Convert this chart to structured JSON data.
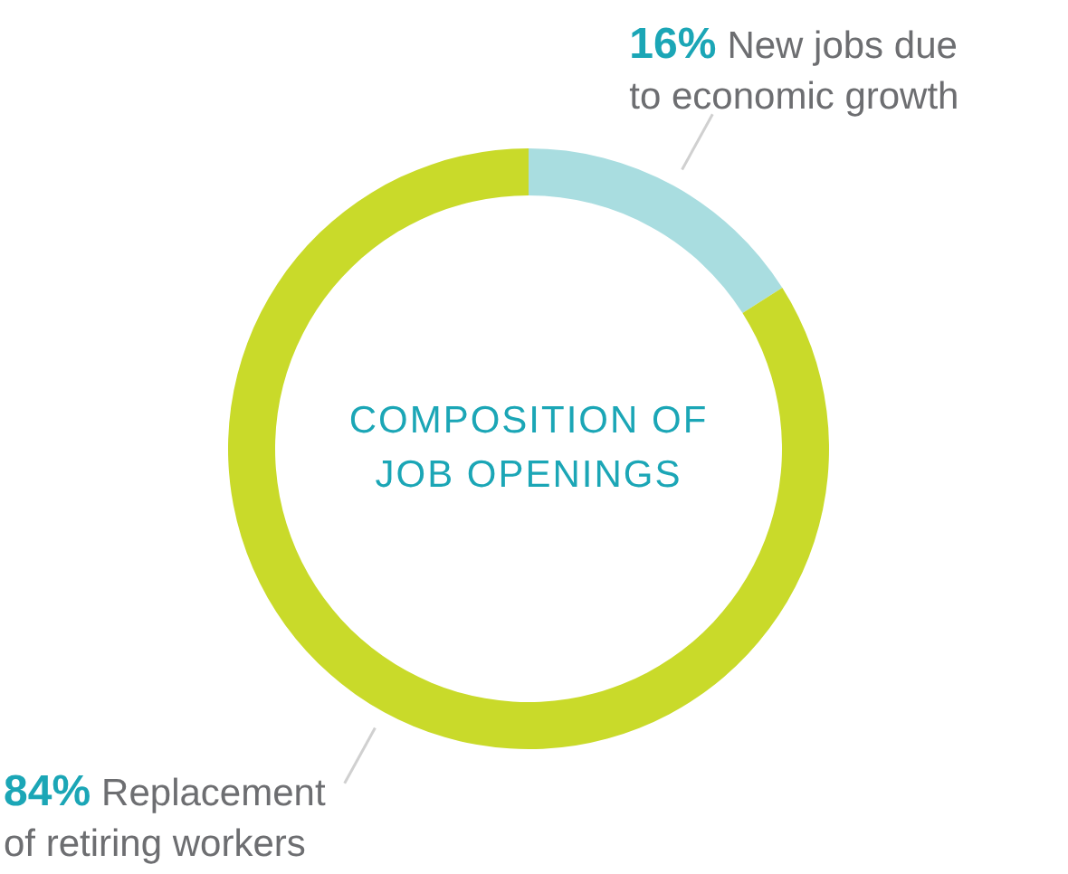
{
  "chart_data": {
    "type": "donut",
    "title": "COMPOSITION OF JOB OPENINGS",
    "categories": [
      "New jobs due to economic growth",
      "Replacement of retiring workers"
    ],
    "values": [
      16,
      84
    ],
    "colors": [
      "#a9dde0",
      "#c9da2a"
    ],
    "value_labels": [
      "16%",
      "84%"
    ]
  }
}
